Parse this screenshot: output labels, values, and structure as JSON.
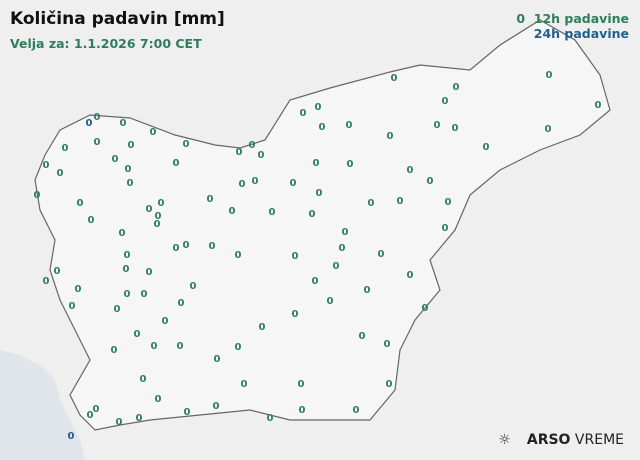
{
  "header": {
    "title": "Količina padavin [mm]",
    "valid": "Velja za: 1.1.2026 7:00 CET"
  },
  "legend": {
    "marker": "0",
    "items": [
      {
        "label": "12h padavine",
        "color": "#2e7d5b"
      },
      {
        "label": "24h padavine",
        "color": "#1f5f8b"
      }
    ]
  },
  "brand": {
    "icon": "sun-rain-icon",
    "bold": "ARSO",
    "light": "VREME"
  },
  "colors": {
    "h12": "#2e7d5b",
    "h24": "#1f5f8b",
    "border": "#666666",
    "land": "#f4f4f4",
    "sea": "#dfe5ea"
  },
  "stations": {
    "h12": [
      "0",
      "0",
      "0",
      "0",
      "0",
      "0",
      "0",
      "0",
      "0",
      "0",
      "0",
      "0",
      "0",
      "0",
      "0",
      "0",
      "0",
      "0",
      "0",
      "0",
      "0",
      "0",
      "0",
      "0",
      "0",
      "0",
      "0",
      "0",
      "0",
      "0",
      "0",
      "0",
      "0",
      "0",
      "0",
      "0",
      "0",
      "0",
      "0",
      "0",
      "0",
      "0",
      "0",
      "0",
      "0",
      "0",
      "0",
      "0",
      "0",
      "0",
      "0",
      "0",
      "0",
      "0",
      "0",
      "0",
      "0",
      "0",
      "0",
      "0",
      "0",
      "0",
      "0",
      "0",
      "0",
      "0",
      "0",
      "0",
      "0",
      "0",
      "0",
      "0",
      "0",
      "0",
      "0",
      "0",
      "0",
      "0",
      "0",
      "0",
      "0",
      "0",
      "0",
      "0",
      "0",
      "0",
      "0",
      "0",
      "0",
      "0",
      "0",
      "0",
      "0",
      "0",
      "0",
      "0",
      "0",
      "0",
      "0",
      "0",
      "0",
      "0",
      "0",
      "0",
      "0"
    ],
    "h24": [
      "0",
      "0"
    ]
  }
}
